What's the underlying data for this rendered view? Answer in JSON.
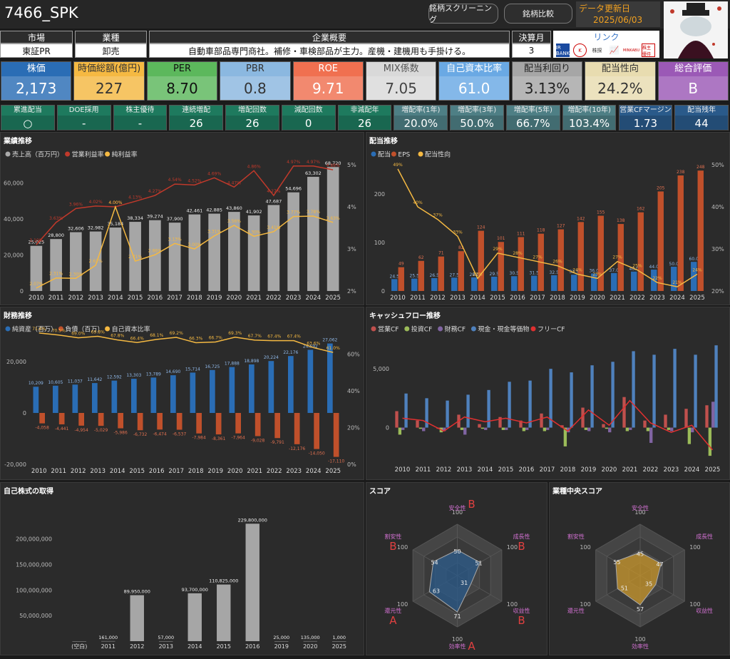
{
  "header": {
    "title": "7466_SPK",
    "btn_screening": "銘柄スクリーニング",
    "btn_compare": "銘柄比較",
    "update_label": "データ更新日",
    "update_date": "2025/06/03"
  },
  "info": {
    "market_label": "市場",
    "market": "東証PR",
    "industry_label": "業種",
    "industry": "卸売",
    "summary_label": "企業概要",
    "summary": "自動車部品専門商社。補修・車検部品が主力。産機・建機用も手掛ける。",
    "fiscal_label": "決算月",
    "fiscal": "3",
    "link_label": "リンク",
    "links": [
      "IR BANK",
      "K",
      "株探",
      "chart",
      "MINKABU",
      "株主優待"
    ]
  },
  "kpis": [
    {
      "label": "株価",
      "value": "2,173",
      "bg": "#2a6db5",
      "lc": "#fff",
      "vc": "#fff"
    },
    {
      "label": "時価総額(億円)",
      "value": "227",
      "bg": "#f5b942",
      "lc": "#333",
      "vc": "#333"
    },
    {
      "label": "PER",
      "value": "8.70",
      "bg": "#5cb85c",
      "lc": "#111",
      "vc": "#111"
    },
    {
      "label": "PBR",
      "value": "0.8",
      "bg": "#8bb8e0",
      "lc": "#333",
      "vc": "#333"
    },
    {
      "label": "ROE",
      "value": "9.71",
      "bg": "#f07050",
      "lc": "#fff",
      "vc": "#fff"
    },
    {
      "label": "MIX係数",
      "value": "7.05",
      "bg": "#d9d9d9",
      "lc": "#555",
      "vc": "#444"
    },
    {
      "label": "自己資本比率",
      "value": "61.0",
      "bg": "#6aa9e4",
      "lc": "#fff",
      "vc": "#fff"
    },
    {
      "label": "配当利回り",
      "value": "3.13%",
      "bg": "#a6a6a6",
      "lc": "#222",
      "vc": "#222"
    },
    {
      "label": "配当性向",
      "value": "24.2%",
      "bg": "#e8dcb0",
      "lc": "#333",
      "vc": "#333"
    },
    {
      "label": "総合評価",
      "value": "B",
      "bg": "#9b59b6",
      "lc": "#fff",
      "vc": "#fff"
    }
  ],
  "smalls": [
    {
      "label": "累進配当",
      "value": "○",
      "bg": "#1e7a5e"
    },
    {
      "label": "DOE採用",
      "value": "-",
      "bg": "#1e7a5e"
    },
    {
      "label": "株主優待",
      "value": "-",
      "bg": "#1e7a5e"
    },
    {
      "label": "連続増配",
      "value": "26",
      "bg": "#1e7a5e"
    },
    {
      "label": "増配回数",
      "value": "26",
      "bg": "#1e7a5e"
    },
    {
      "label": "減配回数",
      "value": "0",
      "bg": "#1e7a5e"
    },
    {
      "label": "非減配年",
      "value": "26",
      "bg": "#1e7a5e"
    },
    {
      "label": "増配率(1年)",
      "value": "20.0%",
      "bg": "#4e7f85"
    },
    {
      "label": "増配率(3年)",
      "value": "50.0%",
      "bg": "#4e7f85"
    },
    {
      "label": "増配率(5年)",
      "value": "66.7%",
      "bg": "#4e7f85"
    },
    {
      "label": "増配率(10年)",
      "value": "103.4%",
      "bg": "#4e7f85"
    },
    {
      "label": "営業CFマージン",
      "value": "1.73",
      "bg": "#2a5a8a"
    },
    {
      "label": "配当残年",
      "value": "44",
      "bg": "#2a5a8a"
    }
  ],
  "panels": {
    "perf": "業績推移",
    "div": "配当推移",
    "fin": "財務推移",
    "cf": "キャッシュフロー推移",
    "buyback": "自己株式の取得",
    "score": "スコア",
    "median": "業種中央スコア"
  },
  "chart_data": [
    {
      "id": "perf",
      "type": "bar",
      "title": "業績推移",
      "legend": [
        "売上高（百万円）",
        "営業利益率",
        "純利益率"
      ],
      "categories": [
        "2010",
        "2011",
        "2012",
        "2013",
        "2014",
        "2015",
        "2016",
        "2017",
        "2018",
        "2019",
        "2020",
        "2021",
        "2022",
        "2023",
        "2024",
        "2025"
      ],
      "series": [
        {
          "name": "売上高（百万円）",
          "values": [
            25025,
            28800,
            32606,
            32982,
            35184,
            38334,
            39274,
            37900,
            42461,
            42885,
            43860,
            41902,
            47687,
            54696,
            63302,
            68720
          ]
        },
        {
          "name": "営業利益率",
          "values": [
            3.1,
            3.63,
            3.96,
            4.02,
            4.0,
            4.13,
            4.27,
            4.54,
            4.52,
            4.69,
            4.47,
            4.86,
            4.27,
            4.97,
            4.97,
            4.88
          ]
        },
        {
          "name": "純利益率",
          "values": [
            2.07,
            2.31,
            2.3,
            2.61,
            4.0,
            2.71,
            2.86,
            3.13,
            3.0,
            3.31,
            3.56,
            3.3,
            3.41,
            3.77,
            3.78,
            3.63
          ]
        }
      ],
      "ylim": [
        0,
        70000
      ],
      "y2lim": [
        2,
        5
      ],
      "yticks": [
        "0",
        "20,000",
        "40,000",
        "60,000"
      ],
      "y2ticks": [
        "2%",
        "3%",
        "4%",
        "5%"
      ]
    },
    {
      "id": "div",
      "type": "bar",
      "title": "配当推移",
      "legend": [
        "配当",
        "EPS",
        "配当性向"
      ],
      "categories": [
        "2010",
        "2011",
        "2012",
        "2013",
        "2014",
        "2015",
        "2016",
        "2017",
        "2018",
        "2019",
        "2020",
        "2021",
        "2022",
        "2023",
        "2024",
        "2025"
      ],
      "series": [
        {
          "name": "配当",
          "values": [
            24.5,
            25.5,
            26.5,
            27.5,
            28,
            29.5,
            30.5,
            31.5,
            32.5,
            33.5,
            36.0,
            37.0,
            40.0,
            44.0,
            50.0,
            60.0
          ]
        },
        {
          "name": "EPS",
          "values": [
            49,
            62,
            71,
            82,
            124,
            101,
            111,
            118,
            127,
            142,
            155,
            138,
            162,
            205,
            238,
            248
          ]
        },
        {
          "name": "配当性向",
          "values": [
            49,
            40,
            37,
            33,
            23,
            29,
            28,
            27,
            26,
            24,
            23,
            27,
            25,
            22,
            21,
            24
          ]
        }
      ],
      "ylim": [
        0,
        260
      ],
      "y2lim": [
        20,
        50
      ],
      "yticks": [
        "0",
        "100",
        "200"
      ],
      "y2ticks": [
        "20%",
        "30%",
        "40%",
        "50%"
      ]
    },
    {
      "id": "fin",
      "type": "bar",
      "title": "財務推移",
      "legend": [
        "純資産（百万）",
        "負債（百万）",
        "自己資本比率"
      ],
      "categories": [
        "2010",
        "2011",
        "2012",
        "2013",
        "2014",
        "2015",
        "2016",
        "2017",
        "2018",
        "2019",
        "2020",
        "2021",
        "2022",
        "2023",
        "2024",
        "2025"
      ],
      "series": [
        {
          "name": "純資産（百万）",
          "values": [
            10209,
            10605,
            11037,
            11642,
            12592,
            13303,
            13789,
            14690,
            15714,
            16725,
            17888,
            18898,
            20224,
            22176,
            24592,
            27062
          ]
        },
        {
          "name": "負債（百万）",
          "values": [
            -4058,
            -4441,
            -4954,
            -5029,
            -5986,
            -6732,
            -6474,
            -6537,
            -7984,
            -8361,
            -7964,
            -9028,
            -9791,
            -12176,
            -14050,
            -17110
          ]
        },
        {
          "name": "自己資本比率",
          "values": [
            71.6,
            70.5,
            69.0,
            69.8,
            67.8,
            66.4,
            68.1,
            69.2,
            66.3,
            66.7,
            69.3,
            67.7,
            67.4,
            67.4,
            63.6,
            61.0
          ]
        }
      ],
      "ylim": [
        -20000,
        30000
      ],
      "y2lim": [
        0,
        70
      ],
      "yticks": [
        "-20,000",
        "0",
        "20,000"
      ],
      "y2ticks": [
        "0%",
        "20%",
        "40%",
        "60%"
      ]
    },
    {
      "id": "cf",
      "type": "bar",
      "title": "キャッシュフロー推移",
      "legend": [
        "営業CF",
        "投資CF",
        "財務CF",
        "現金・現金等価物",
        "フリーCF"
      ],
      "categories": [
        "2010",
        "2011",
        "2012",
        "2013",
        "2014",
        "2015",
        "2016",
        "2017",
        "2018",
        "2019",
        "2020",
        "2021",
        "2022",
        "2023",
        "2024",
        "2025"
      ],
      "series": [
        {
          "name": "営業CF",
          "values": [
            1400,
            600,
            -100,
            1100,
            300,
            900,
            600,
            1200,
            200,
            1700,
            300,
            2600,
            600,
            1100,
            1600,
            1900
          ]
        },
        {
          "name": "投資CF",
          "values": [
            -600,
            -100,
            -400,
            -200,
            -100,
            -200,
            -300,
            -300,
            -1600,
            -200,
            -100,
            -300,
            -300,
            -200,
            -1400,
            -2400
          ]
        },
        {
          "name": "財務CF",
          "values": [
            -200,
            -300,
            -300,
            -600,
            -200,
            -200,
            -200,
            -200,
            -400,
            -300,
            -400,
            -200,
            -1300,
            -300,
            -400,
            2200
          ]
        },
        {
          "name": "現金・現金等価物",
          "values": [
            2900,
            2500,
            2300,
            2800,
            3200,
            3900,
            4000,
            5000,
            4700,
            5300,
            5600,
            6500,
            6200,
            6700,
            6200,
            7000
          ]
        },
        {
          "name": "フリーCF",
          "values": [
            800,
            600,
            -300,
            900,
            500,
            800,
            400,
            900,
            -300,
            1500,
            200,
            2300,
            400,
            -400,
            200,
            -1900
          ]
        }
      ],
      "ylim": [
        -3000,
        7800
      ],
      "yticks": [
        "0",
        "5,000"
      ]
    },
    {
      "id": "buyback",
      "type": "bar",
      "title": "自己株式の取得",
      "categories": [
        "(空白)",
        "2011",
        "2012",
        "2013",
        "2014",
        "2015",
        "2016",
        "2019",
        "2020",
        "2025"
      ],
      "values": [
        0,
        161000,
        89950000,
        57000,
        93700000,
        110825000,
        229800000,
        25000,
        135000,
        1000
      ],
      "labels": [
        "",
        "161,000",
        "89,950,000",
        "57,000",
        "93,700,000",
        "110,825,000",
        "229,800,000",
        "25,000",
        "135,000",
        "1,000"
      ],
      "ylim": [
        0,
        240000000
      ],
      "yticks": [
        "50,000,000",
        "100,000,000",
        "150,000,000",
        "200,000,000"
      ]
    },
    {
      "id": "score",
      "type": "radar",
      "title": "スコア",
      "axes": [
        "安全性",
        "成長性",
        "収益性",
        "効率性",
        "還元性",
        "割安性"
      ],
      "values": [
        50,
        51,
        31,
        71,
        63,
        54
      ],
      "grades": [
        "B",
        "B",
        "B",
        "A",
        "A",
        "B"
      ],
      "max": 100
    },
    {
      "id": "median",
      "type": "radar",
      "title": "業種中央スコア",
      "axes": [
        "安全性",
        "成長性",
        "収益性",
        "効率性",
        "還元性",
        "割安性"
      ],
      "values": [
        45,
        47,
        35,
        57,
        51,
        55
      ],
      "max": 100
    }
  ]
}
